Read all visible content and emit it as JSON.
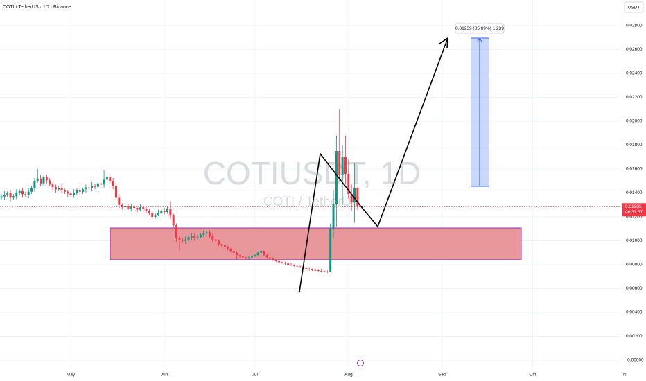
{
  "chart_data": {
    "type": "candlestick",
    "title": "COTI / TetherUS · 1D · Binance",
    "watermark": "COTIUSDT, 1D",
    "watermark_subtitle": "COTI / TetherUS",
    "currency": "USDT",
    "countdown": "06:37:37",
    "annotation": "0.01239 (85.09%) 1,239",
    "up_color": "#089981",
    "down_color": "#f23645",
    "grid": true,
    "open": [
      0.0136,
      0.0137,
      0.01385,
      0.01398,
      0.0136,
      0.01372,
      0.014,
      0.01415,
      0.0139,
      0.0138,
      0.0141,
      0.0144,
      0.015,
      0.0152,
      0.0148,
      0.0153,
      0.01505,
      0.0147,
      0.0145,
      0.0143,
      0.0144,
      0.0142,
      0.0141,
      0.01395,
      0.01385,
      0.014,
      0.0142,
      0.0141,
      0.0143,
      0.01445,
      0.0144,
      0.0146,
      0.0145,
      0.0148,
      0.0147,
      0.0151,
      0.0153,
      0.015,
      0.0146,
      0.0136,
      0.013,
      0.0128,
      0.0129,
      0.0127,
      0.01285,
      0.01275,
      0.0126,
      0.0128,
      0.0127,
      0.0125,
      0.0123,
      0.012,
      0.0121,
      0.0123,
      0.0125,
      0.0124,
      0.0127,
      0.0121,
      0.0113,
      0.0102,
      0.0101,
      0.01,
      0.0101,
      0.0103,
      0.0104,
      0.0102,
      0.0103,
      0.0105,
      0.0106,
      0.0107,
      0.0104,
      0.0101,
      0.01,
      0.0097,
      0.0096,
      0.0095,
      0.0093,
      0.0091,
      0.009,
      0.0088,
      0.0087,
      0.0086,
      0.0085,
      0.0086,
      0.0087,
      0.0088,
      0.009,
      0.0091,
      0.0088,
      0.0086,
      0.0085,
      0.0084,
      0.0083,
      0.0082,
      0.00815,
      0.0081,
      0.008,
      0.00795,
      0.0079,
      0.00785,
      0.0078,
      0.0077,
      0.00765,
      0.0076,
      0.00755,
      0.00752,
      0.00748,
      0.00745,
      0.00742,
      0.0074,
      0.011,
      0.0131,
      0.0175,
      0.0155,
      0.017,
      0.0156,
      0.0139,
      0.0132,
      0.0144
    ],
    "high": [
      0.0139,
      0.01415,
      0.01413,
      0.01423,
      0.01392,
      0.0143,
      0.0143,
      0.0144,
      0.0141,
      0.0144,
      0.01455,
      0.01525,
      0.016,
      0.0155,
      0.01545,
      0.01555,
      0.01525,
      0.01485,
      0.0147,
      0.0146,
      0.0147,
      0.01435,
      0.01425,
      0.0141,
      0.0143,
      0.0144,
      0.0145,
      0.01445,
      0.0147,
      0.01465,
      0.0149,
      0.01475,
      0.01505,
      0.015,
      0.0159,
      0.0156,
      0.01545,
      0.01525,
      0.0148,
      0.0139,
      0.01315,
      0.01315,
      0.0131,
      0.01305,
      0.0131,
      0.0129,
      0.01305,
      0.013,
      0.01285,
      0.0127,
      0.01245,
      0.0123,
      0.0126,
      0.01265,
      0.01275,
      0.0129,
      0.0133,
      0.01225,
      0.01145,
      0.0104,
      0.01025,
      0.01035,
      0.01045,
      0.01065,
      0.0106,
      0.0105,
      0.01065,
      0.01085,
      0.01085,
      0.0109,
      0.0106,
      0.01018,
      0.01012,
      0.00976,
      0.0097,
      0.00958,
      0.00942,
      0.00916,
      0.0091,
      0.00888,
      0.00882,
      0.00866,
      0.0087,
      0.00878,
      0.00892,
      0.00908,
      0.00922,
      0.00916,
      0.0089,
      0.00868,
      0.00862,
      0.00846,
      0.0084,
      0.00826,
      0.00825,
      0.00818,
      0.00812,
      0.00801,
      0.008,
      0.00793,
      0.00792,
      0.00776,
      0.00775,
      0.00768,
      0.00767,
      0.00758,
      0.00758,
      0.00753,
      0.00752,
      0.0114,
      0.0142,
      0.0188,
      0.021,
      0.018,
      0.0188,
      0.0168,
      0.0147,
      0.0165,
      0.0145
    ],
    "low": [
      0.01345,
      0.01345,
      0.01365,
      0.0133,
      0.01345,
      0.01347,
      0.0138,
      0.0136,
      0.01365,
      0.01355,
      0.0139,
      0.0141,
      0.01485,
      0.01455,
      0.0146,
      0.01475,
      0.01455,
      0.01425,
      0.014,
      0.01415,
      0.01395,
      0.0139,
      0.01365,
      0.0137,
      0.0136,
      0.01385,
      0.01385,
      0.0139,
      0.014,
      0.01425,
      0.01415,
      0.0143,
      0.0142,
      0.01455,
      0.01445,
      0.0149,
      0.0148,
      0.0143,
      0.01345,
      0.01275,
      0.0126,
      0.0125,
      0.01255,
      0.01245,
      0.0126,
      0.01235,
      0.01245,
      0.0124,
      0.0123,
      0.0121,
      0.0117,
      0.01185,
      0.01205,
      0.01225,
      0.0122,
      0.01225,
      0.01185,
      0.0111,
      0.0099,
      0.0092,
      0.0098,
      0.00975,
      0.0099,
      0.01005,
      0.01,
      0.01005,
      0.0102,
      0.0103,
      0.0104,
      0.01025,
      0.00985,
      0.00985,
      0.00958,
      0.0095,
      0.0094,
      0.00918,
      0.009,
      0.0089,
      0.0084,
      0.00858,
      0.0085,
      0.0084,
      0.0084,
      0.00852,
      0.00862,
      0.00868,
      0.0089,
      0.00872,
      0.0085,
      0.00842,
      0.0083,
      0.00822,
      0.0081,
      0.00809,
      0.008,
      0.0079,
      0.00789,
      0.00784,
      0.00775,
      0.00772,
      0.00764,
      0.00759,
      0.0075,
      0.00747,
      0.00746,
      0.00742,
      0.00735,
      0.00736,
      0.0073,
      0.00735,
      0.0102,
      0.0112,
      0.015,
      0.013,
      0.0147,
      0.0135,
      0.0125,
      0.0115,
      0.0126
    ],
    "close": [
      0.0137,
      0.01385,
      0.01398,
      0.0136,
      0.01372,
      0.014,
      0.01415,
      0.0139,
      0.0138,
      0.0141,
      0.0144,
      0.015,
      0.0152,
      0.0148,
      0.0153,
      0.01505,
      0.0147,
      0.0145,
      0.0143,
      0.0144,
      0.0142,
      0.0141,
      0.01395,
      0.01385,
      0.014,
      0.0142,
      0.0141,
      0.0143,
      0.01445,
      0.0144,
      0.0146,
      0.0145,
      0.0148,
      0.0147,
      0.0151,
      0.0153,
      0.015,
      0.0146,
      0.0136,
      0.013,
      0.0128,
      0.0129,
      0.0127,
      0.01285,
      0.01275,
      0.0126,
      0.0128,
      0.0127,
      0.0125,
      0.0123,
      0.012,
      0.0121,
      0.0123,
      0.0125,
      0.0124,
      0.0127,
      0.0121,
      0.0113,
      0.0102,
      0.0101,
      0.01,
      0.0101,
      0.0103,
      0.0104,
      0.0102,
      0.0103,
      0.0105,
      0.0106,
      0.0107,
      0.0104,
      0.0101,
      0.01,
      0.0097,
      0.0096,
      0.0095,
      0.0093,
      0.0091,
      0.009,
      0.0088,
      0.0087,
      0.0086,
      0.0085,
      0.0086,
      0.0087,
      0.0088,
      0.009,
      0.0091,
      0.0088,
      0.0086,
      0.0085,
      0.0084,
      0.0083,
      0.0082,
      0.00815,
      0.0081,
      0.008,
      0.00795,
      0.0079,
      0.00785,
      0.0078,
      0.0077,
      0.00765,
      0.0076,
      0.00755,
      0.00752,
      0.00748,
      0.00745,
      0.00742,
      0.0074,
      0.011,
      0.0131,
      0.0175,
      0.0155,
      0.017,
      0.0156,
      0.0139,
      0.0132,
      0.0144,
      0.01285
    ],
    "xlim": [
      -0.46,
      213.55
    ],
    "xticks": [
      {
        "value": 23,
        "label": "May"
      },
      {
        "value": 54,
        "label": "Jun"
      },
      {
        "value": 84,
        "label": "Jul"
      },
      {
        "value": 115,
        "label": "Aug"
      },
      {
        "value": 146,
        "label": "Sep"
      },
      {
        "value": 176,
        "label": "Oct"
      },
      {
        "value": 206.5,
        "label": "N"
      }
    ],
    "ylim": [
      -0.00058,
      0.03014
    ],
    "yticks": [
      {
        "value": 0,
        "label": "-0.00000"
      },
      {
        "value": 0.002,
        "label": "0.00200"
      },
      {
        "value": 0.004,
        "label": "0.00400"
      },
      {
        "value": 0.006,
        "label": "0.00600"
      },
      {
        "value": 0.008,
        "label": "0.00800"
      },
      {
        "value": 0.01,
        "label": "0.01000"
      },
      {
        "value": 0.012,
        "label": "0.01200"
      },
      {
        "value": 0.014,
        "label": "0.01400"
      },
      {
        "value": 0.016,
        "label": "0.01600"
      },
      {
        "value": 0.018,
        "label": "0.01800"
      },
      {
        "value": 0.02,
        "label": "0.02000"
      },
      {
        "value": 0.022,
        "label": "0.02200"
      },
      {
        "value": 0.024,
        "label": "0.02400"
      },
      {
        "value": 0.026,
        "label": "0.02600"
      },
      {
        "value": 0.028,
        "label": "0.02800"
      }
    ]
  }
}
